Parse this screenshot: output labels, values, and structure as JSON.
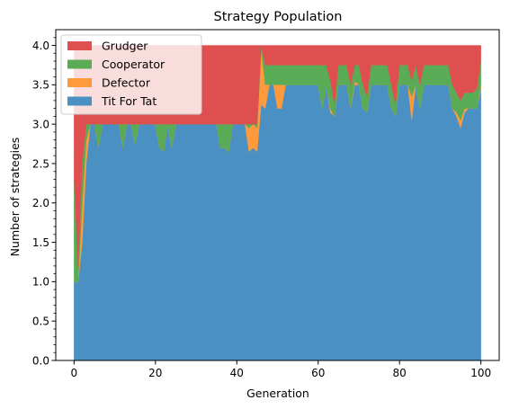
{
  "chart_data": {
    "type": "area",
    "stacked": true,
    "title": "Strategy Population",
    "xlabel": "Generation",
    "ylabel": "Number of strategies",
    "xlim": [
      -4.5,
      104.5
    ],
    "ylim": [
      0,
      4.2
    ],
    "xticks": [
      0,
      20,
      40,
      60,
      80,
      100
    ],
    "yticks": [
      0.0,
      0.5,
      1.0,
      1.5,
      2.0,
      2.5,
      3.0,
      3.5,
      4.0
    ],
    "ytick_labels": [
      "0.0",
      "0.5",
      "1.0",
      "1.5",
      "2.0",
      "2.5",
      "3.0",
      "3.5",
      "4.0"
    ],
    "grid": false,
    "legend_position": "upper left",
    "legend_order": [
      "Grudger",
      "Cooperator",
      "Defector",
      "Tit For Tat"
    ],
    "x": [
      0,
      1,
      2,
      3,
      4,
      5,
      6,
      7,
      8,
      9,
      10,
      11,
      12,
      13,
      14,
      15,
      16,
      17,
      18,
      19,
      20,
      21,
      22,
      23,
      24,
      25,
      26,
      27,
      28,
      29,
      30,
      31,
      32,
      33,
      34,
      35,
      36,
      37,
      38,
      39,
      40,
      41,
      42,
      43,
      44,
      45,
      46,
      47,
      48,
      49,
      50,
      51,
      52,
      53,
      54,
      55,
      56,
      57,
      58,
      59,
      60,
      61,
      62,
      63,
      64,
      65,
      66,
      67,
      68,
      69,
      70,
      71,
      72,
      73,
      74,
      75,
      76,
      77,
      78,
      79,
      80,
      81,
      82,
      83,
      84,
      85,
      86,
      87,
      88,
      89,
      90,
      91,
      92,
      93,
      94,
      95,
      96,
      97,
      98,
      99,
      100
    ],
    "series": [
      {
        "name": "Tit For Tat",
        "color": "#4a90c2",
        "values": [
          1.0,
          1.0,
          1.5,
          2.5,
          3.0,
          3.0,
          2.7,
          3.0,
          3.0,
          3.0,
          3.0,
          3.0,
          2.7,
          3.0,
          3.0,
          2.75,
          3.0,
          3.0,
          3.0,
          3.0,
          3.0,
          2.7,
          2.65,
          3.0,
          2.7,
          3.0,
          3.0,
          3.0,
          3.0,
          3.0,
          3.0,
          3.0,
          3.0,
          3.0,
          3.0,
          3.0,
          2.7,
          2.7,
          2.65,
          3.0,
          3.0,
          3.0,
          3.0,
          2.65,
          2.7,
          2.65,
          3.25,
          3.2,
          3.5,
          3.5,
          3.2,
          3.2,
          3.5,
          3.5,
          3.5,
          3.5,
          3.5,
          3.5,
          3.5,
          3.5,
          3.5,
          3.2,
          3.5,
          3.15,
          3.1,
          3.5,
          3.5,
          3.5,
          3.2,
          3.5,
          3.5,
          3.2,
          3.15,
          3.5,
          3.5,
          3.5,
          3.5,
          3.5,
          3.2,
          3.1,
          3.5,
          3.5,
          3.5,
          3.05,
          3.5,
          3.2,
          3.5,
          3.5,
          3.5,
          3.5,
          3.5,
          3.5,
          3.5,
          3.2,
          3.1,
          2.95,
          3.15,
          3.2,
          3.2,
          3.2,
          3.45
        ]
      },
      {
        "name": "Defector",
        "color": "#ff9a3c",
        "values": [
          0.0,
          0.0,
          0.5,
          0.3,
          0.0,
          0.0,
          0.0,
          0.0,
          0.0,
          0.0,
          0.0,
          0.0,
          0.0,
          0.0,
          0.0,
          0.0,
          0.0,
          0.0,
          0.0,
          0.0,
          0.0,
          0.0,
          0.0,
          0.0,
          0.0,
          0.0,
          0.0,
          0.0,
          0.0,
          0.0,
          0.0,
          0.0,
          0.0,
          0.0,
          0.0,
          0.0,
          0.0,
          0.0,
          0.0,
          0.0,
          0.0,
          0.0,
          0.0,
          0.3,
          0.3,
          0.3,
          0.7,
          0.3,
          0.0,
          0.0,
          0.3,
          0.3,
          0.0,
          0.0,
          0.0,
          0.0,
          0.0,
          0.0,
          0.0,
          0.0,
          0.0,
          0.0,
          0.0,
          0.05,
          0.0,
          0.0,
          0.0,
          0.0,
          0.0,
          0.05,
          0.0,
          0.0,
          0.0,
          0.0,
          0.0,
          0.0,
          0.0,
          0.0,
          0.0,
          0.0,
          0.0,
          0.0,
          0.0,
          0.3,
          0.0,
          0.0,
          0.0,
          0.0,
          0.0,
          0.0,
          0.0,
          0.0,
          0.0,
          0.0,
          0.05,
          0.1,
          0.05,
          0.0,
          0.0,
          0.0,
          0.05
        ]
      },
      {
        "name": "Cooperator",
        "color": "#59ab56",
        "values": [
          1.3,
          0.2,
          0.5,
          0.2,
          0.0,
          0.0,
          0.3,
          0.0,
          0.0,
          0.0,
          0.0,
          0.0,
          0.3,
          0.0,
          0.0,
          0.25,
          0.0,
          0.0,
          0.0,
          0.0,
          0.0,
          0.3,
          0.35,
          0.0,
          0.3,
          0.0,
          0.0,
          0.0,
          0.0,
          0.0,
          0.0,
          0.0,
          0.0,
          0.0,
          0.0,
          0.0,
          0.3,
          0.3,
          0.35,
          0.0,
          0.0,
          0.0,
          0.0,
          0.05,
          0.0,
          0.05,
          0.05,
          0.25,
          0.25,
          0.25,
          0.25,
          0.25,
          0.25,
          0.25,
          0.25,
          0.25,
          0.25,
          0.25,
          0.25,
          0.25,
          0.25,
          0.55,
          0.25,
          0.35,
          0.15,
          0.25,
          0.25,
          0.25,
          0.3,
          0.2,
          0.25,
          0.3,
          0.2,
          0.25,
          0.25,
          0.25,
          0.25,
          0.25,
          0.3,
          0.15,
          0.25,
          0.25,
          0.25,
          0.2,
          0.25,
          0.3,
          0.25,
          0.25,
          0.25,
          0.25,
          0.25,
          0.25,
          0.25,
          0.3,
          0.25,
          0.25,
          0.2,
          0.2,
          0.2,
          0.25,
          0.3
        ]
      },
      {
        "name": "Grudger",
        "color": "#e04f4f",
        "values": [
          1.7,
          2.8,
          1.5,
          1.0,
          1.0,
          1.0,
          1.0,
          1.0,
          1.0,
          1.0,
          1.0,
          1.0,
          1.0,
          1.0,
          1.0,
          1.0,
          1.0,
          1.0,
          1.0,
          1.0,
          1.0,
          1.0,
          1.0,
          1.0,
          1.0,
          1.0,
          1.0,
          1.0,
          1.0,
          1.0,
          1.0,
          1.0,
          1.0,
          1.0,
          1.0,
          1.0,
          1.0,
          1.0,
          1.0,
          1.0,
          1.0,
          1.0,
          1.0,
          1.0,
          1.0,
          1.0,
          0.0,
          0.25,
          0.25,
          0.25,
          0.25,
          0.25,
          0.25,
          0.25,
          0.25,
          0.25,
          0.25,
          0.25,
          0.25,
          0.25,
          0.25,
          0.25,
          0.25,
          0.45,
          0.75,
          0.25,
          0.25,
          0.25,
          0.5,
          0.25,
          0.25,
          0.5,
          0.65,
          0.25,
          0.25,
          0.25,
          0.25,
          0.25,
          0.5,
          0.75,
          0.25,
          0.25,
          0.25,
          0.45,
          0.25,
          0.5,
          0.25,
          0.25,
          0.25,
          0.25,
          0.25,
          0.25,
          0.25,
          0.5,
          0.6,
          0.7,
          0.6,
          0.6,
          0.6,
          0.55,
          0.2
        ]
      }
    ]
  }
}
